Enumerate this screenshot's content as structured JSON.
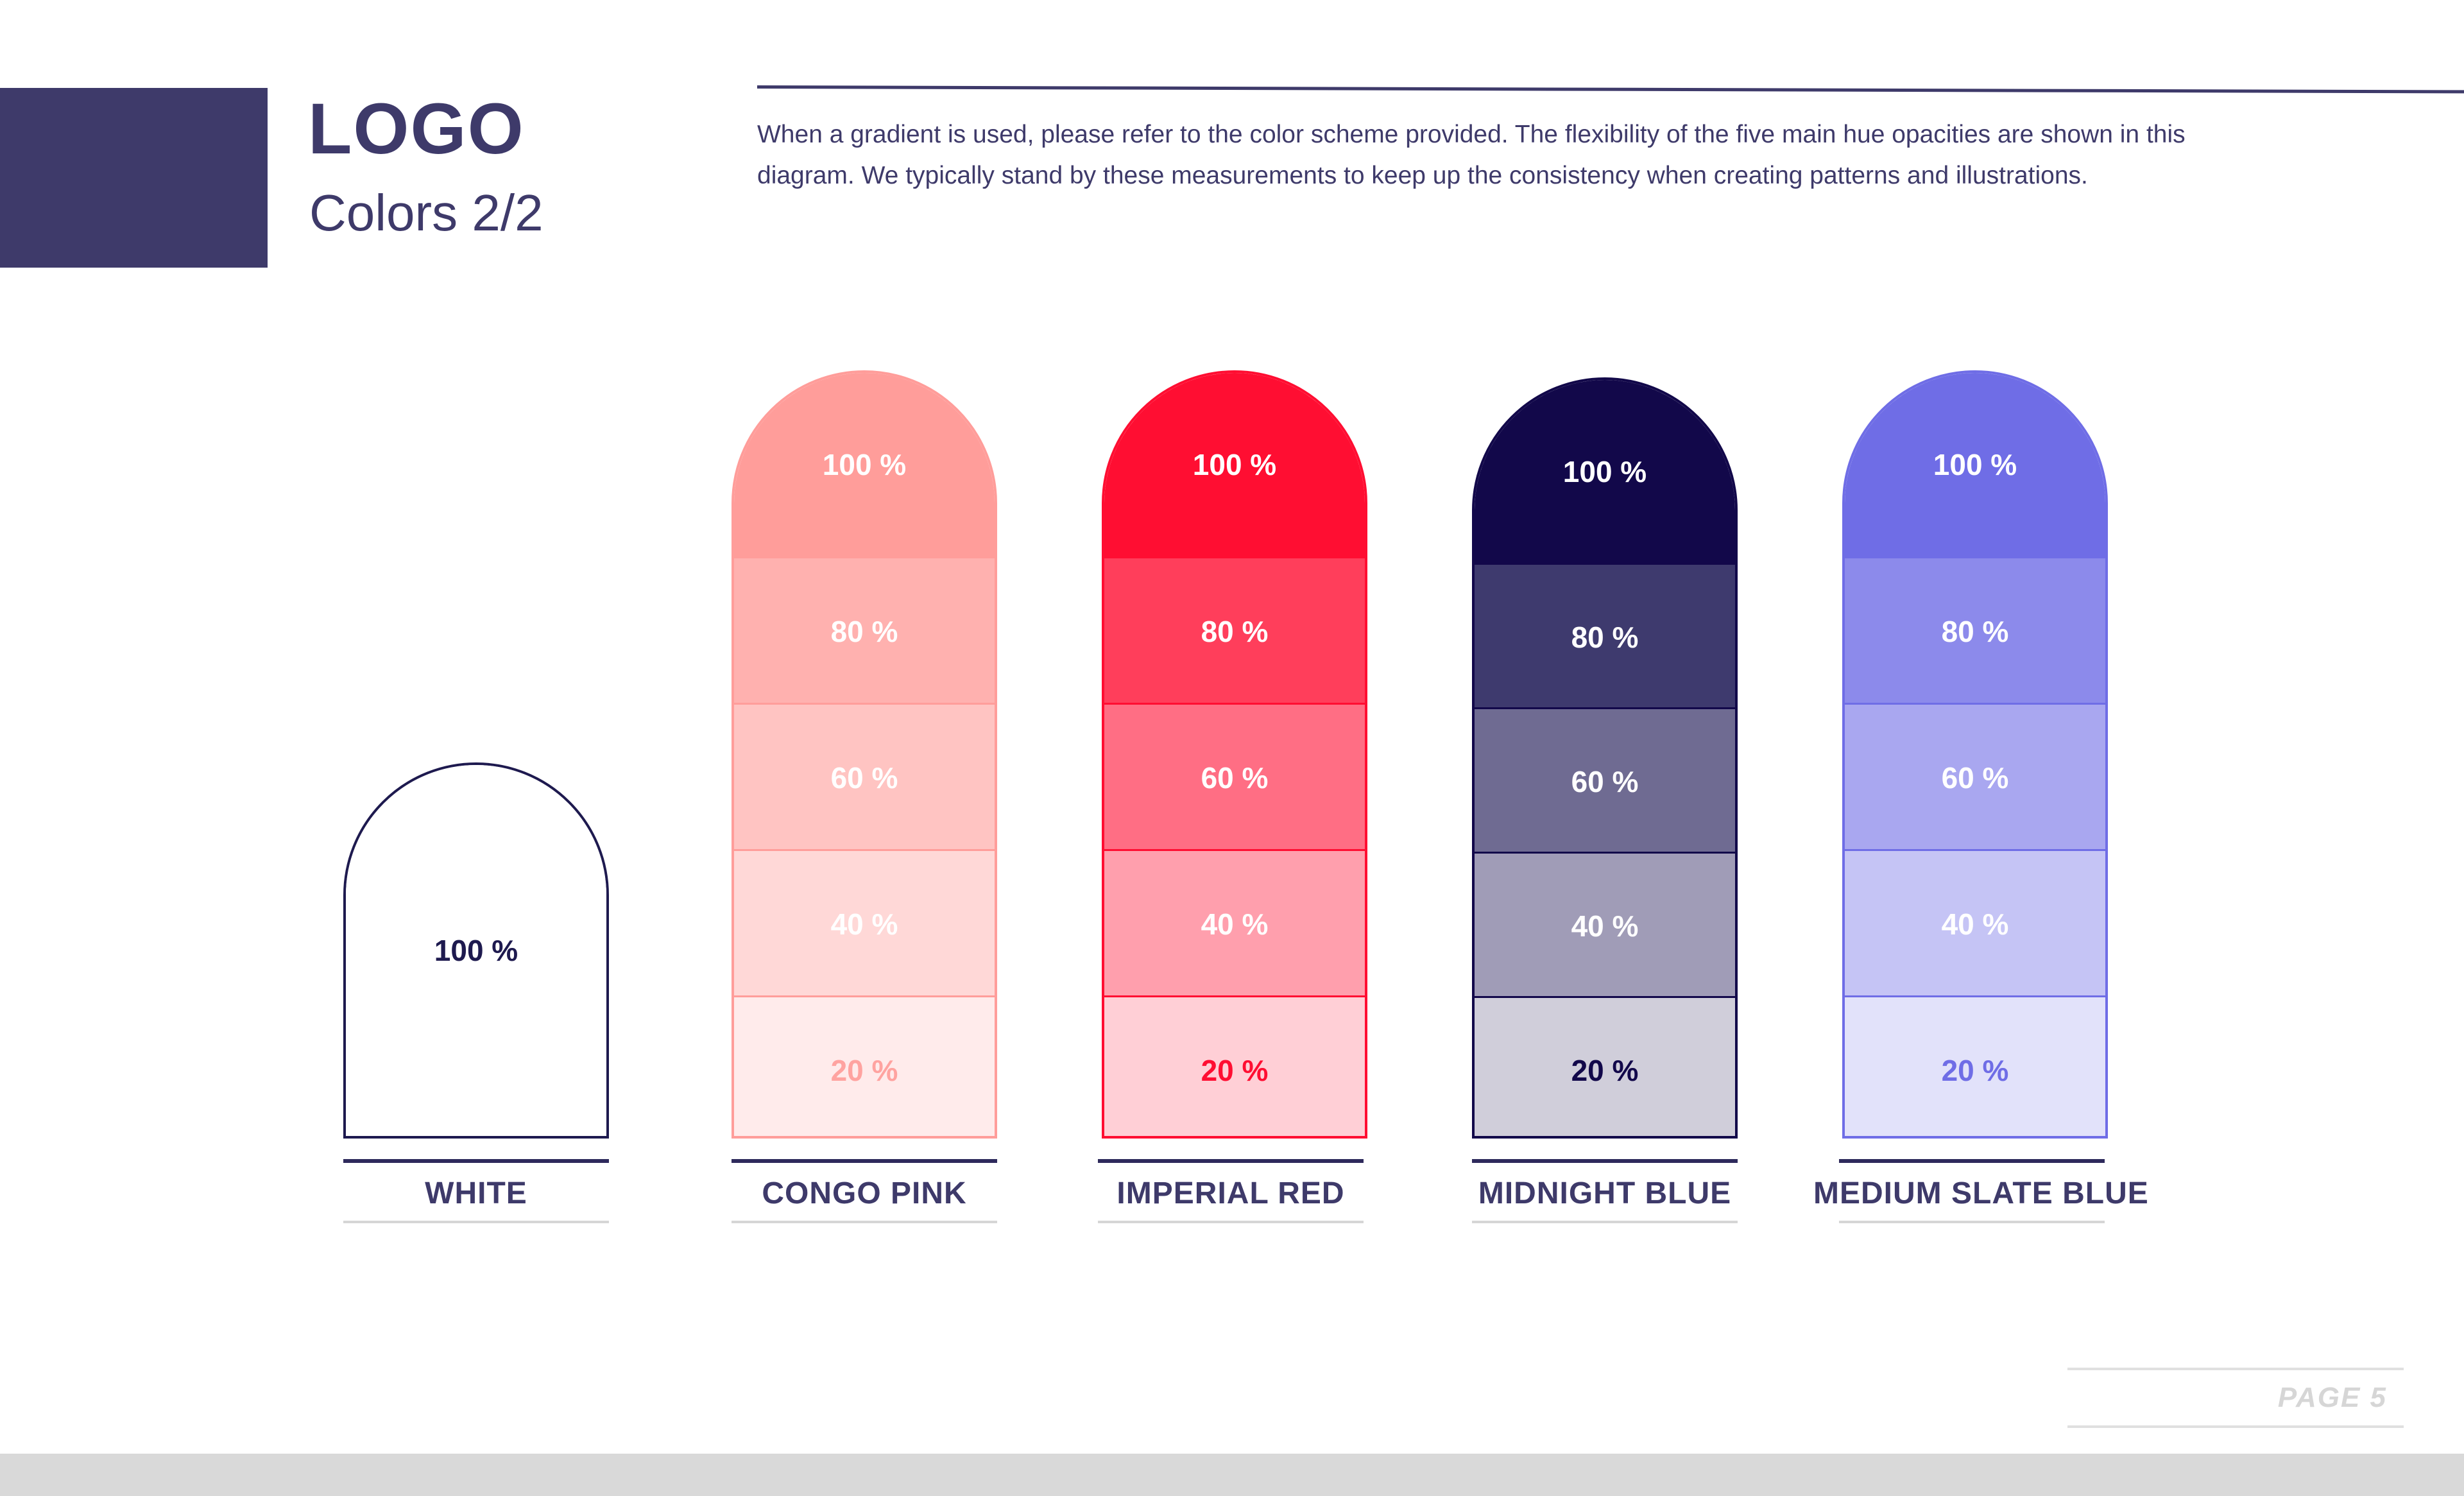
{
  "header": {
    "title": "LOGO",
    "subtitle": "Colors 2/2",
    "description": "When a gradient is used, please refer to the color scheme provided. The flexibility of the five main hue opacities are shown in this diagram. We typically stand by these measurements to keep up the consistency when creating patterns and illustrations."
  },
  "palette": [
    {
      "name": "WHITE",
      "outline": "#1e1a4f",
      "steps": [
        {
          "label": "100 %",
          "fill": "#ffffff",
          "text_color": "#1e1a4f"
        }
      ]
    },
    {
      "name": "CONGO PINK",
      "outline": "#ff9d9a",
      "steps": [
        {
          "label": "100 %",
          "fill": "#ff9d9a",
          "text_color": "#ffffff"
        },
        {
          "label": "80 %",
          "fill": "#ffb1af",
          "text_color": "#ffffff"
        },
        {
          "label": "60 %",
          "fill": "#ffc4c2",
          "text_color": "#ffffff"
        },
        {
          "label": "40 %",
          "fill": "#ffd8d7",
          "text_color": "#ffffff"
        },
        {
          "label": "20 %",
          "fill": "#ffebeb",
          "text_color": "#ffa3a0"
        }
      ]
    },
    {
      "name": "IMPERIAL RED",
      "outline": "#ff0e32",
      "steps": [
        {
          "label": "100 %",
          "fill": "#ff0e32",
          "text_color": "#ffffff"
        },
        {
          "label": "80 %",
          "fill": "#ff3e5b",
          "text_color": "#ffffff"
        },
        {
          "label": "60 %",
          "fill": "#ff6e84",
          "text_color": "#ffffff"
        },
        {
          "label": "40 %",
          "fill": "#ff9fad",
          "text_color": "#ffffff"
        },
        {
          "label": "20 %",
          "fill": "#ffcfd6",
          "text_color": "#ff0e32"
        }
      ]
    },
    {
      "name": "MIDNIGHT BLUE",
      "outline": "#12084a",
      "steps": [
        {
          "label": "100 %",
          "fill": "#12084a",
          "text_color": "#ffffff"
        },
        {
          "label": "80 %",
          "fill": "#3e3a6e",
          "text_color": "#ffffff"
        },
        {
          "label": "60 %",
          "fill": "#6f6b92",
          "text_color": "#ffffff"
        },
        {
          "label": "40 %",
          "fill": "#a09cb7",
          "text_color": "#ffffff"
        },
        {
          "label": "20 %",
          "fill": "#d0ceda",
          "text_color": "#12084a"
        }
      ]
    },
    {
      "name": "MEDIUM SLATE BLUE",
      "outline": "#6f6de6",
      "steps": [
        {
          "label": "100 %",
          "fill": "#6f6de6",
          "text_color": "#ffffff"
        },
        {
          "label": "80 %",
          "fill": "#8c8aeb",
          "text_color": "#ffffff"
        },
        {
          "label": "60 %",
          "fill": "#a9a7f0",
          "text_color": "#ffffff"
        },
        {
          "label": "40 %",
          "fill": "#c5c4f5",
          "text_color": "#ffffff"
        },
        {
          "label": "20 %",
          "fill": "#e2e2fa",
          "text_color": "#6f6de6"
        }
      ]
    }
  ],
  "footer": {
    "page_label": "PAGE 5"
  }
}
